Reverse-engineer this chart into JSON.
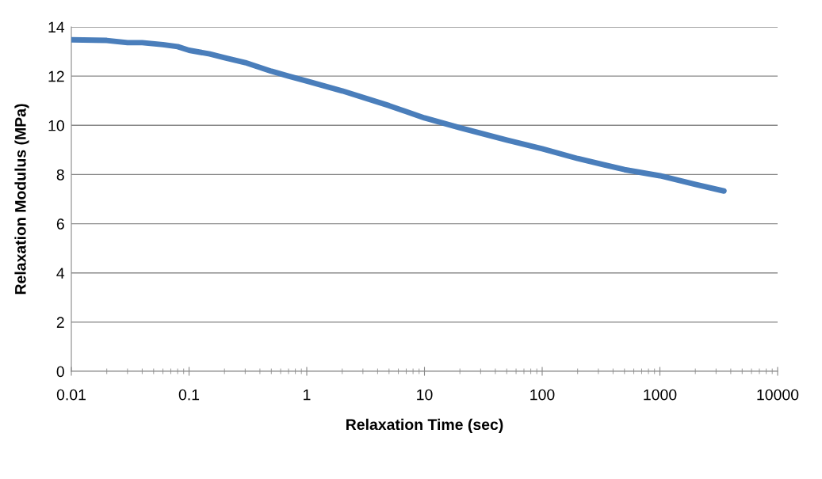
{
  "chart_data": {
    "type": "line",
    "xlabel": "Relaxation Time (sec)",
    "ylabel": "Relaxation Modulus (MPa)",
    "log": "x",
    "x": [
      0.01,
      0.02,
      0.03,
      0.04,
      0.06,
      0.08,
      0.1,
      0.15,
      0.2,
      0.3,
      0.5,
      0.7,
      1,
      2,
      5,
      10,
      20,
      50,
      100,
      200,
      500,
      1000,
      2000,
      3500
    ],
    "series": [
      {
        "color": "#4a7ebb",
        "values": [
          13.48,
          13.45,
          13.36,
          13.36,
          13.28,
          13.2,
          13.05,
          12.9,
          12.75,
          12.55,
          12.2,
          12.0,
          11.8,
          11.4,
          10.8,
          10.3,
          9.9,
          9.4,
          9.05,
          8.65,
          8.2,
          7.95,
          7.6,
          7.33
        ]
      }
    ],
    "xlim": [
      0.01,
      10000
    ],
    "xticks": [
      0.01,
      0.1,
      1,
      10,
      100,
      1000,
      10000
    ],
    "ylim": [
      0,
      14
    ],
    "yticks": [
      0,
      2,
      4,
      6,
      8,
      10,
      12,
      14
    ],
    "grid": "y",
    "marker": "none",
    "line_style": "solid"
  }
}
